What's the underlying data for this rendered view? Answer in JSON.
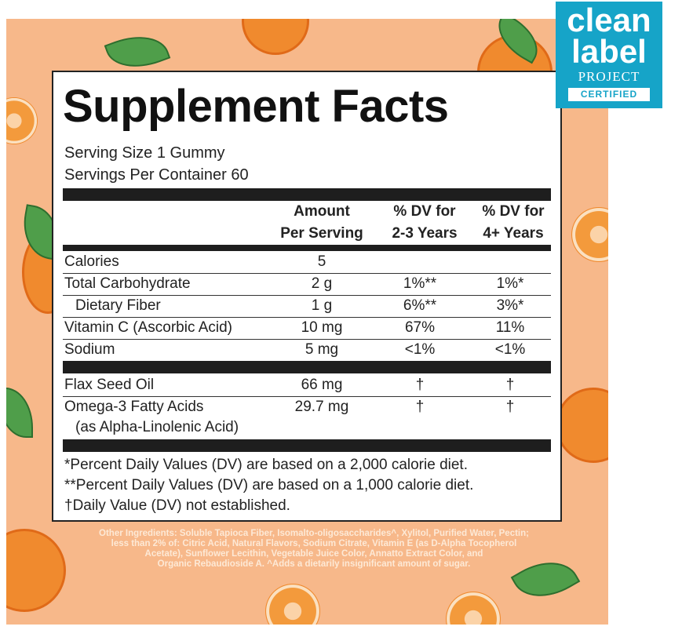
{
  "facts": {
    "title": "Supplement Facts",
    "serving_size": "Serving Size 1 Gummy",
    "servings_per_container": "Servings Per Container 60",
    "headers": {
      "amount_line1": "Amount",
      "amount_line2": "Per Serving",
      "dv_kids_line1": "% DV for",
      "dv_kids_line2": "2-3 Years",
      "dv_adult_line1": "% DV for",
      "dv_adult_line2": "4+ Years"
    },
    "rows": [
      {
        "name": "Calories",
        "amount": "5",
        "dv_kids": "",
        "dv_adult": ""
      },
      {
        "name": "Total Carbohydrate",
        "amount": "2 g",
        "dv_kids": "1%**",
        "dv_adult": "1%*"
      },
      {
        "name": "Dietary Fiber",
        "amount": "1 g",
        "dv_kids": "6%**",
        "dv_adult": "3%*"
      },
      {
        "name": "Vitamin C (Ascorbic Acid)",
        "amount": "10 mg",
        "dv_kids": "67%",
        "dv_adult": "11%"
      },
      {
        "name": "Sodium",
        "amount": "5 mg",
        "dv_kids": "<1%",
        "dv_adult": "<1%"
      }
    ],
    "rows2": [
      {
        "name": "Flax Seed Oil",
        "amount": "66 mg",
        "dv_kids": "†",
        "dv_adult": "†"
      },
      {
        "name": "Omega-3 Fatty Acids",
        "name_line2": "(as Alpha-Linolenic Acid)",
        "amount": "29.7 mg",
        "dv_kids": "†",
        "dv_adult": "†"
      }
    ],
    "footnotes": [
      "*Percent Daily Values (DV) are based on a 2,000 calorie diet.",
      "**Percent Daily Values (DV) are based on a 1,000 calorie diet.",
      "†Daily Value (DV) not established."
    ]
  },
  "ingredients": {
    "line1": "Other Ingredients: Soluble Tapioca Fiber, Isomalto-oligosaccharides^, Xylitol, Purified Water, Pectin;",
    "line2": "less than 2% of: Citric Acid, Natural Flavors, Sodium Citrate, Vitamin E (as D-Alpha Tocopherol",
    "line3": "Acetate), Sunflower Lecithin, Vegetable Juice Color, Annatto Extract Color, and",
    "line4": "Organic Rebaudioside A. ^Adds a dietarily insignificant amount of sugar."
  },
  "badge": {
    "word1": "clean",
    "word2": "label",
    "word3": "PROJECT",
    "certified": "CERTIFIED",
    "color": "#16a4c8"
  },
  "colors": {
    "background": "#f7b88a",
    "orange": "#f08a2e",
    "leaf": "#4f9e4a"
  }
}
